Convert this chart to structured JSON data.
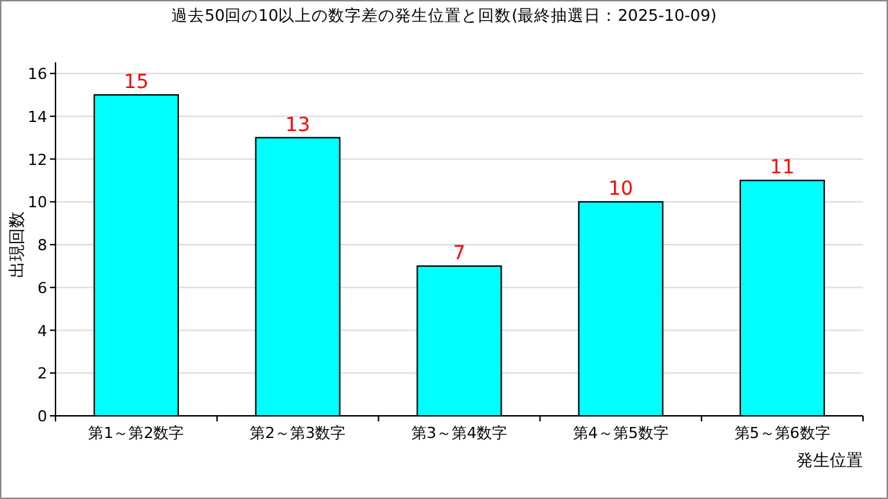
{
  "chart_data": {
    "type": "bar",
    "title": "過去50回の10以上の数字差の発生位置と回数(最終抽選日：2025-10-09)",
    "xlabel": "発生位置",
    "ylabel": "出現回数",
    "categories": [
      "第1～第2数字",
      "第2～第3数字",
      "第3～第4数字",
      "第4～第5数字",
      "第5～第6数字"
    ],
    "values": [
      15,
      13,
      7,
      10,
      11
    ],
    "color": "#00ffff",
    "data_labels": true,
    "ylim": [
      0,
      16
    ],
    "yticks": [
      0,
      2,
      4,
      6,
      8,
      10,
      12,
      14,
      16
    ],
    "grid": "y"
  }
}
